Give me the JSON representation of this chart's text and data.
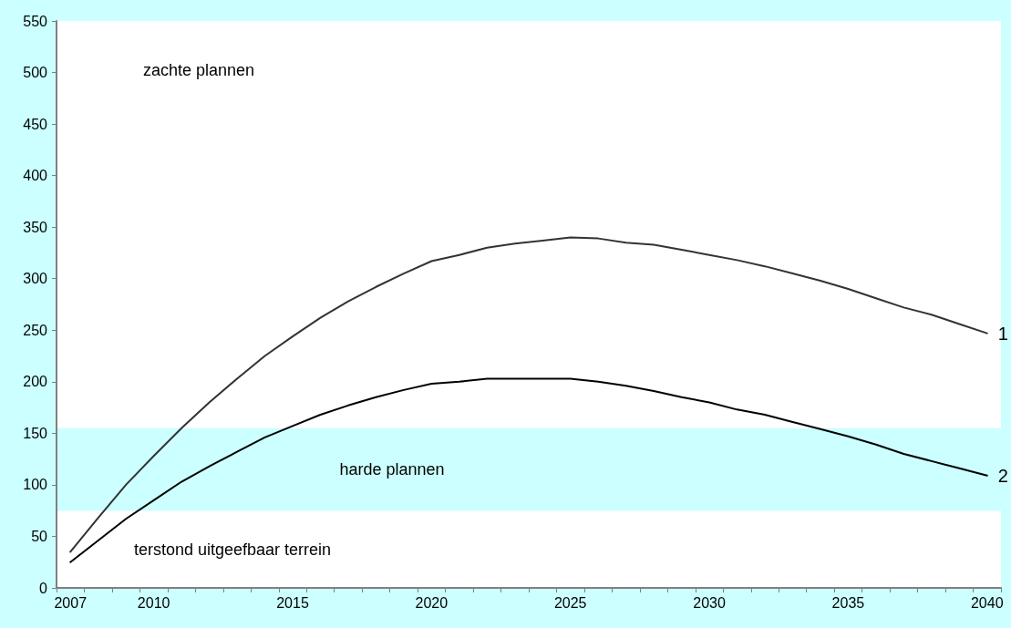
{
  "chart_data": {
    "type": "line",
    "categories": [
      "2007",
      null,
      null,
      "2010",
      null,
      null,
      null,
      null,
      "2015",
      null,
      null,
      null,
      null,
      "2020",
      null,
      null,
      null,
      null,
      "2025",
      null,
      null,
      null,
      null,
      "2030",
      null,
      null,
      null,
      null,
      "2035",
      null,
      null,
      null,
      null,
      "2040"
    ],
    "series": [
      {
        "name": "1",
        "color": "#333333",
        "values": [
          35,
          68,
          100,
          128,
          155,
          180,
          203,
          225,
          244,
          262,
          278,
          292,
          305,
          317,
          323,
          330,
          334,
          337,
          340,
          339,
          335,
          333,
          328,
          323,
          318,
          312,
          305,
          298,
          290,
          281,
          272,
          265,
          256,
          247
        ]
      },
      {
        "name": "2",
        "color": "#000000",
        "values": [
          25,
          46,
          67,
          85,
          103,
          118,
          132,
          146,
          157,
          168,
          177,
          185,
          192,
          198,
          200,
          203,
          203,
          203,
          203,
          200,
          196,
          191,
          185,
          180,
          173,
          168,
          161,
          154,
          147,
          139,
          130,
          123,
          116,
          109
        ]
      }
    ],
    "ylim": [
      0,
      550
    ],
    "yticks": [
      0,
      50,
      100,
      150,
      200,
      250,
      300,
      350,
      400,
      450,
      500,
      550
    ],
    "bands": [
      {
        "axis": "y",
        "from": 0,
        "to": 75,
        "label": "terstond uitgeefbaar terrein",
        "color": "#ffffff"
      },
      {
        "axis": "y",
        "from": 75,
        "to": 155,
        "label": "harde plannen",
        "color": "#ccffff"
      },
      {
        "axis": "y",
        "from": 155,
        "to": 550,
        "label": "zachte plannen",
        "color": "#ffffff"
      }
    ],
    "grid": false,
    "legend": false,
    "marker": "none",
    "line_style": "solid"
  }
}
